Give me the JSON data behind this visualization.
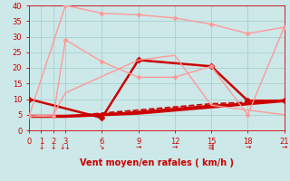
{
  "xlabel": "Vent moyen/en rafales ( km/h )",
  "bg_color": "#cce8e8",
  "grid_color": "#aad0d0",
  "text_color": "#cc0000",
  "xlim": [
    0,
    21
  ],
  "ylim": [
    0,
    40
  ],
  "xticks": [
    0,
    1,
    2,
    3,
    6,
    9,
    12,
    15,
    18,
    21
  ],
  "yticks": [
    0,
    5,
    10,
    15,
    20,
    25,
    30,
    35,
    40
  ],
  "lines": [
    {
      "x": [
        0,
        3,
        6,
        9,
        12,
        15,
        18,
        21
      ],
      "y": [
        4.5,
        4.5,
        5.0,
        5.5,
        6.5,
        7.5,
        8.5,
        9.5
      ],
      "color": "#cc0000",
      "lw": 2.5,
      "marker": null,
      "ls": "-"
    },
    {
      "x": [
        0,
        3,
        6,
        9,
        12,
        15,
        18,
        21
      ],
      "y": [
        4.5,
        4.5,
        5.5,
        6.5,
        7.5,
        8.5,
        9.0,
        9.5
      ],
      "color": "#cc0000",
      "lw": 1.2,
      "marker": null,
      "ls": "--"
    },
    {
      "x": [
        0,
        3,
        6,
        9,
        12,
        15,
        18,
        21
      ],
      "y": [
        4.5,
        4.5,
        5.0,
        6.0,
        7.0,
        8.0,
        8.5,
        9.5
      ],
      "color": "#cc0000",
      "lw": 1.2,
      "marker": null,
      "ls": "-"
    },
    {
      "x": [
        0,
        6,
        9,
        15,
        18,
        21
      ],
      "y": [
        10,
        4,
        22.5,
        20.5,
        9.5,
        9.5
      ],
      "color": "#cc0000",
      "lw": 1.8,
      "marker": "D",
      "ms": 3.5,
      "ls": "-"
    },
    {
      "x": [
        0,
        2,
        3,
        6,
        9,
        12,
        15,
        18,
        21
      ],
      "y": [
        4.5,
        4.5,
        29,
        22,
        17,
        17,
        20.5,
        5,
        33
      ],
      "color": "#ff9999",
      "lw": 1.0,
      "marker": "D",
      "ms": 2.5,
      "ls": "-"
    },
    {
      "x": [
        0,
        3,
        6,
        9,
        12,
        15,
        18,
        21
      ],
      "y": [
        4.5,
        40,
        37.5,
        37,
        36,
        34,
        31,
        33
      ],
      "color": "#ff9999",
      "lw": 1.0,
      "marker": "D",
      "ms": 2.5,
      "ls": "-"
    },
    {
      "x": [
        0,
        2,
        3,
        9,
        12,
        15,
        21
      ],
      "y": [
        4.5,
        5,
        12,
        22.5,
        24,
        8,
        5
      ],
      "color": "#ff9999",
      "lw": 1.0,
      "marker": null,
      "ls": "-"
    }
  ],
  "wind_arrows": [
    {
      "x": 1,
      "symbol": "↓"
    },
    {
      "x": 2,
      "symbol": "↓"
    },
    {
      "x": 3,
      "symbol": "↓↓"
    },
    {
      "x": 6,
      "symbol": "↘"
    },
    {
      "x": 9,
      "symbol": "→"
    },
    {
      "x": 12,
      "symbol": "→"
    },
    {
      "x": 15,
      "symbol": "⇶"
    },
    {
      "x": 18,
      "symbol": "→"
    },
    {
      "x": 21,
      "symbol": "→"
    }
  ]
}
